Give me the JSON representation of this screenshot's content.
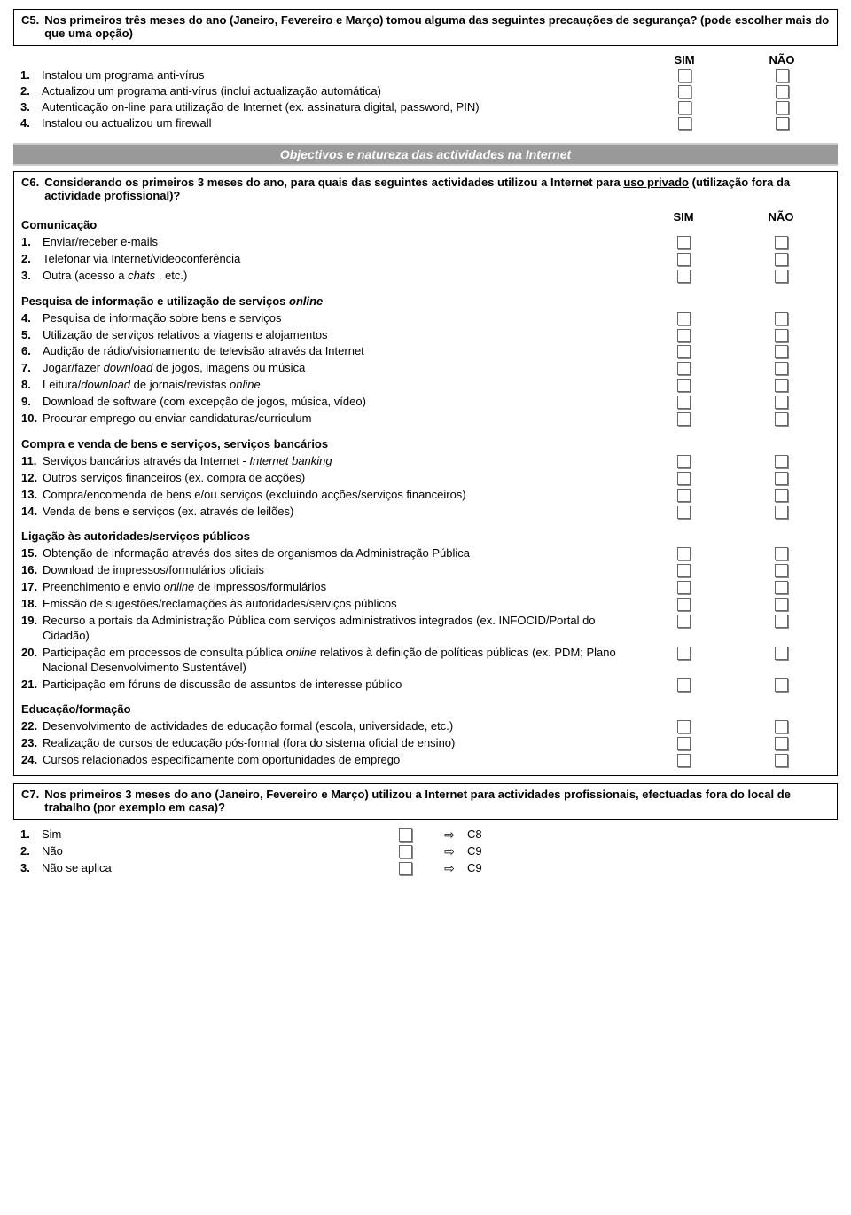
{
  "c5": {
    "num": "C5.",
    "text": "Nos primeiros três meses do ano (Janeiro, Fevereiro e Março) tomou alguma das seguintes precauções de segurança? (pode escolher mais do que uma opção)",
    "sim": "SIM",
    "nao": "NÃO",
    "items": [
      {
        "n": "1.",
        "t": "Instalou um programa anti-vírus"
      },
      {
        "n": "2.",
        "t": "Actualizou um programa anti-vírus (inclui actualização automática)"
      },
      {
        "n": "3.",
        "t": "Autenticação on-line para utilização de Internet (ex. assinatura digital, password, PIN)"
      },
      {
        "n": "4.",
        "t": "Instalou ou actualizou um firewall"
      }
    ]
  },
  "band": "Objectivos e natureza das actividades na Internet",
  "c6": {
    "num": "C6.",
    "text_a": "Considerando os primeiros 3 meses do ano, para quais das seguintes actividades utilizou a Internet para ",
    "text_uso": "uso privado",
    "text_b": " (utilização fora da actividade profissional)?",
    "sim": "SIM",
    "nao": "NÃO",
    "groups": [
      {
        "title": "Comunicação",
        "show_headers": true,
        "items": [
          {
            "n": "1.",
            "t": "Enviar/receber e-mails"
          },
          {
            "n": "2.",
            "t": "Telefonar via Internet/videoconferência"
          },
          {
            "n": "3.",
            "t_a": "Outra (acesso a ",
            "t_i": "chats",
            "t_b": " , etc.)"
          }
        ]
      },
      {
        "title_a": "Pesquisa de informação e utilização de serviços ",
        "title_i": "online",
        "items": [
          {
            "n": "4.",
            "t": "Pesquisa de informação sobre bens e serviços"
          },
          {
            "n": "5.",
            "t": "Utilização de serviços relativos a viagens e alojamentos"
          },
          {
            "n": "6.",
            "t": "Audição de rádio/visionamento de televisão através da Internet"
          },
          {
            "n": "7.",
            "t_a": "Jogar/fazer ",
            "t_i": "download",
            "t_b": " de jogos, imagens ou música"
          },
          {
            "n": "8.",
            "t_a": "Leitura/",
            "t_i": "download",
            "t_b": " de jornais/revistas ",
            "t_i2": "online"
          },
          {
            "n": "9.",
            "t": "Download de software (com excepção de jogos, música, vídeo)"
          },
          {
            "n": "10.",
            "t": "Procurar emprego ou enviar candidaturas/curriculum"
          }
        ]
      },
      {
        "title": "Compra e venda de bens e serviços, serviços bancários",
        "items": [
          {
            "n": "11.",
            "t_a": "Serviços bancários através da Internet - ",
            "t_i": "Internet banking"
          },
          {
            "n": "12.",
            "t": "Outros serviços financeiros (ex. compra de acções)"
          },
          {
            "n": "13.",
            "t": "Compra/encomenda de bens e/ou serviços (excluindo acções/serviços financeiros)"
          },
          {
            "n": "14.",
            "t": "Venda de bens e serviços (ex. através de leilões)"
          }
        ]
      },
      {
        "title": "Ligação às autoridades/serviços públicos",
        "items": [
          {
            "n": "15.",
            "t": "Obtenção de informação através dos sites de organismos da Administração Pública"
          },
          {
            "n": "16.",
            "t": "Download de impressos/formulários oficiais"
          },
          {
            "n": "17.",
            "t_a": "Preenchimento e envio ",
            "t_i": "online",
            "t_b": " de impressos/formulários"
          },
          {
            "n": "18.",
            "t": "Emissão de sugestões/reclamações às autoridades/serviços públicos"
          },
          {
            "n": "19.",
            "t": "Recurso a portais da Administração Pública com serviços administrativos integrados (ex. INFOCID/Portal do Cidadão)"
          },
          {
            "n": "20.",
            "t_a": "Participação em processos de consulta pública ",
            "t_i": "online",
            "t_b": " relativos à definição de políticas públicas (ex. PDM; Plano Nacional Desenvolvimento Sustentável)"
          },
          {
            "n": "21.",
            "t": "Participação em fóruns de discussão de assuntos de interesse público"
          }
        ]
      },
      {
        "title": "Educação/formação",
        "items": [
          {
            "n": "22.",
            "t": "Desenvolvimento de actividades de educação formal (escola, universidade, etc.)"
          },
          {
            "n": "23.",
            "t": "Realização de cursos de educação pós-formal (fora do sistema oficial de ensino)"
          },
          {
            "n": "24.",
            "t": "Cursos relacionados especificamente com oportunidades de emprego"
          }
        ]
      }
    ]
  },
  "c7": {
    "num": "C7.",
    "text": "Nos primeiros 3 meses do ano (Janeiro, Fevereiro e Março) utilizou a Internet para actividades profissionais, efectuadas fora do local de trabalho (por exemplo em casa)?",
    "items": [
      {
        "n": "1.",
        "t": "Sim",
        "goto": "C8"
      },
      {
        "n": "2.",
        "t": "Não",
        "goto": "C9"
      },
      {
        "n": "3.",
        "t": "Não se aplica",
        "goto": "C9"
      }
    ]
  }
}
